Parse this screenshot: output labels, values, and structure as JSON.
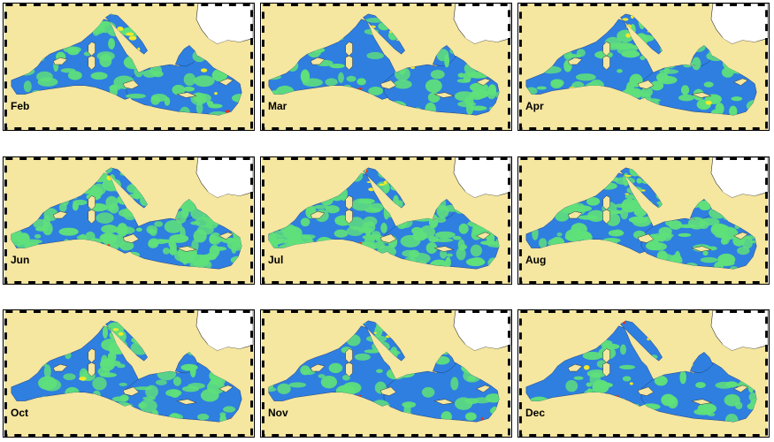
{
  "figure": {
    "panels": [
      {
        "month": "Feb",
        "green": 0.45,
        "yellow": 0.1,
        "red": 0.06
      },
      {
        "month": "Mar",
        "green": 0.5,
        "yellow": 0.12,
        "red": 0.05
      },
      {
        "month": "Apr",
        "green": 0.5,
        "yellow": 0.12,
        "red": 0.03
      },
      {
        "month": "Jun",
        "green": 0.9,
        "yellow": 0.02,
        "red": 0.02
      },
      {
        "month": "Jul",
        "green": 0.92,
        "yellow": 0.1,
        "red": 0.03
      },
      {
        "month": "Aug",
        "green": 0.88,
        "yellow": 0.08,
        "red": 0.03
      },
      {
        "month": "Oct",
        "green": 0.45,
        "yellow": 0.04,
        "red": 0.02
      },
      {
        "month": "Nov",
        "green": 0.35,
        "yellow": 0.04,
        "red": 0.03
      },
      {
        "month": "Dec",
        "green": 0.3,
        "yellow": 0.08,
        "red": 0.04
      }
    ],
    "colors": {
      "land": "#f5e6a0",
      "unmapped_land": "#ffffff",
      "sea_low": "#2e7fe0",
      "sea_mid": "#5fe07a",
      "sea_high": "#f3e82a",
      "sea_peak": "#e2331c",
      "frame": "#000000"
    }
  }
}
